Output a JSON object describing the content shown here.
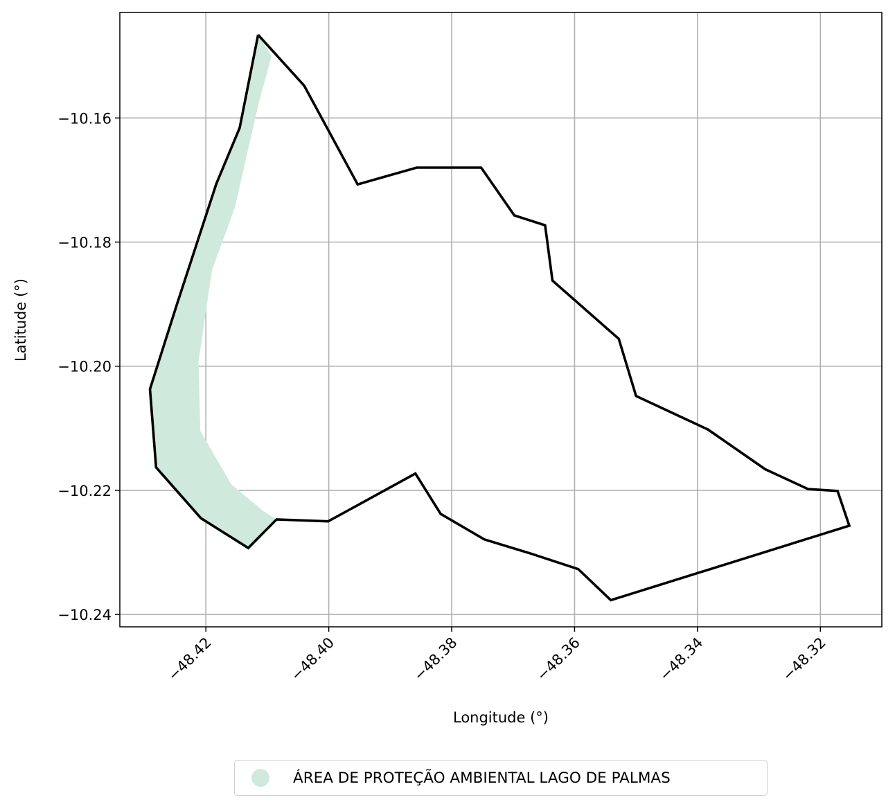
{
  "chart_data": {
    "type": "map",
    "title": "",
    "xlabel": "Longitude (°)",
    "ylabel": "Latitude (°)",
    "xlim": [
      -48.434,
      -48.31
    ],
    "ylim": [
      -10.242,
      -10.143
    ],
    "grid": true,
    "x_ticks": [
      -48.42,
      -48.4,
      -48.38,
      -48.36,
      -48.34,
      -48.32
    ],
    "x_tick_labels": [
      "−48.42",
      "−48.40",
      "−48.38",
      "−48.36",
      "−48.34",
      "−48.32"
    ],
    "y_ticks": [
      -10.16,
      -10.18,
      -10.2,
      -10.22,
      -10.24
    ],
    "y_tick_labels": [
      "−10.16",
      "−10.18",
      "−10.20",
      "−10.22",
      "−10.24"
    ],
    "boundary": {
      "color": "#000000",
      "points": [
        [
          -48.4115,
          -10.1466
        ],
        [
          -48.404,
          -10.1548
        ],
        [
          -48.3953,
          -10.1707
        ],
        [
          -48.3857,
          -10.168
        ],
        [
          -48.3752,
          -10.168
        ],
        [
          -48.3698,
          -10.1757
        ],
        [
          -48.3648,
          -10.1773
        ],
        [
          -48.3636,
          -10.1862
        ],
        [
          -48.3528,
          -10.1956
        ],
        [
          -48.35,
          -10.2048
        ],
        [
          -48.3383,
          -10.2102
        ],
        [
          -48.329,
          -10.2166
        ],
        [
          -48.322,
          -10.2198
        ],
        [
          -48.3172,
          -10.2201
        ],
        [
          -48.3153,
          -10.2257
        ],
        [
          -48.3541,
          -10.2377
        ],
        [
          -48.3594,
          -10.2327
        ],
        [
          -48.3671,
          -10.2302
        ],
        [
          -48.3747,
          -10.2279
        ],
        [
          -48.3818,
          -10.2238
        ],
        [
          -48.3859,
          -10.2173
        ],
        [
          -48.4001,
          -10.225
        ],
        [
          -48.4085,
          -10.2247
        ],
        [
          -48.4131,
          -10.2293
        ],
        [
          -48.4208,
          -10.2245
        ],
        [
          -48.4281,
          -10.2163
        ],
        [
          -48.4291,
          -10.2037
        ],
        [
          -48.4247,
          -10.19
        ],
        [
          -48.4183,
          -10.1706
        ],
        [
          -48.4145,
          -10.1616
        ],
        [
          -48.4115,
          -10.1466
        ]
      ]
    },
    "protected_area": {
      "name": "ÁREA DE PROTEÇÃO AMBIENTAL LAGO DE PALMAS",
      "color": "#cfeadc",
      "points": [
        [
          -48.4115,
          -10.1466
        ],
        [
          -48.4093,
          -10.15
        ],
        [
          -48.4115,
          -10.158
        ],
        [
          -48.4153,
          -10.1745
        ],
        [
          -48.419,
          -10.1845
        ],
        [
          -48.4212,
          -10.1993
        ],
        [
          -48.4209,
          -10.2104
        ],
        [
          -48.4159,
          -10.219
        ],
        [
          -48.4107,
          -10.2233
        ],
        [
          -48.4085,
          -10.2247
        ],
        [
          -48.4131,
          -10.2293
        ],
        [
          -48.4208,
          -10.2245
        ],
        [
          -48.4281,
          -10.2163
        ],
        [
          -48.4291,
          -10.2037
        ],
        [
          -48.4247,
          -10.19
        ],
        [
          -48.4183,
          -10.1706
        ],
        [
          -48.4145,
          -10.1616
        ],
        [
          -48.4115,
          -10.1466
        ]
      ]
    },
    "legend": {
      "position": "bottom-center",
      "entries": [
        {
          "label": "ÁREA DE PROTEÇÃO AMBIENTAL LAGO DE PALMAS",
          "color": "#cfeadc",
          "marker": "circle"
        }
      ]
    }
  }
}
